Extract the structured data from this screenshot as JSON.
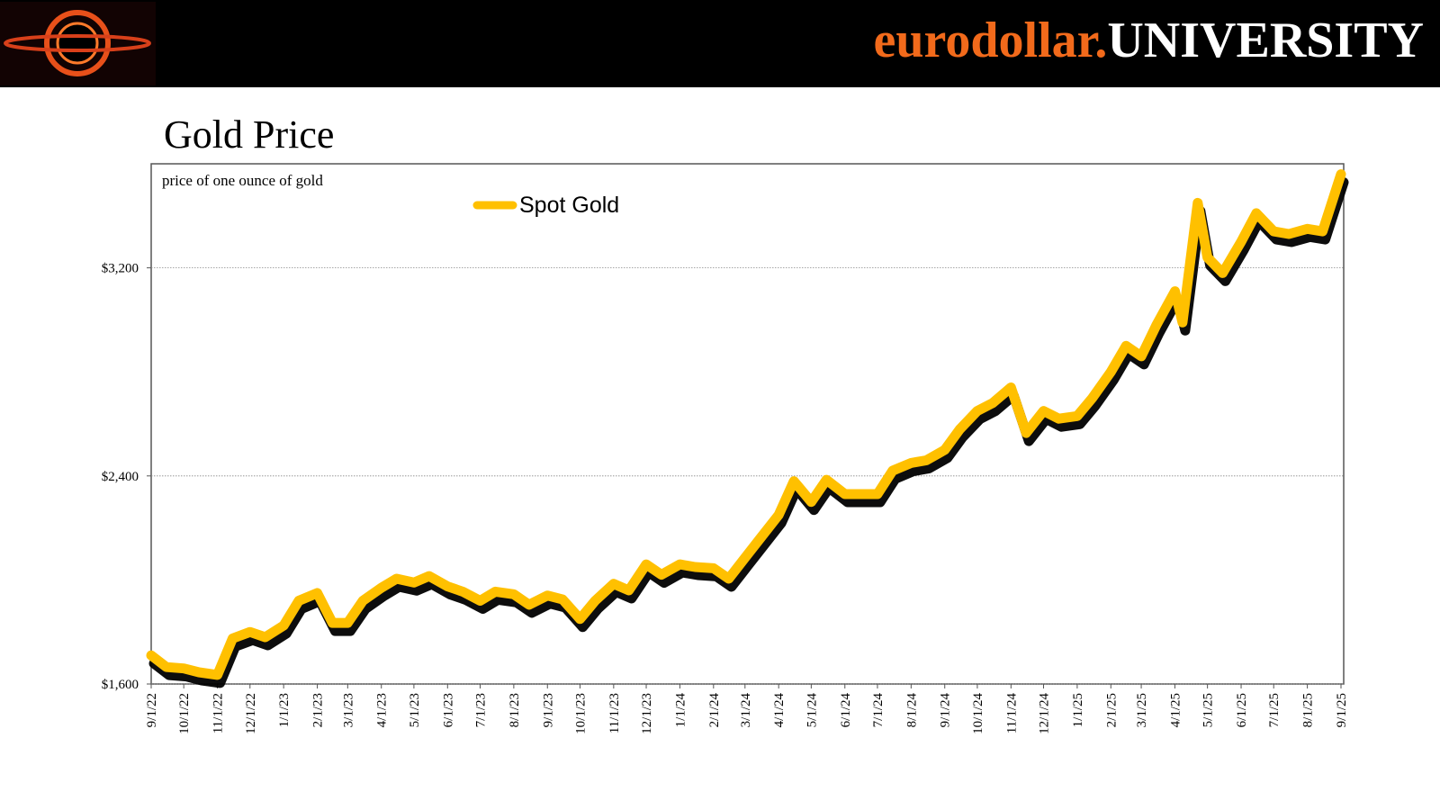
{
  "header": {
    "brand_part1": "eurodollar.",
    "brand_part2": "UNIVERSITY"
  },
  "chart_data": {
    "type": "line",
    "title": "Gold Price",
    "subtitle": "price of one ounce of gold",
    "x": [
      "9/1/22",
      "9/15/22",
      "10/1/22",
      "10/15/22",
      "11/1/22",
      "11/15/22",
      "12/1/22",
      "12/15/22",
      "1/1/23",
      "1/15/23",
      "2/1/23",
      "2/15/23",
      "3/1/23",
      "3/15/23",
      "4/1/23",
      "4/15/23",
      "5/1/23",
      "5/15/23",
      "6/1/23",
      "6/15/23",
      "7/1/23",
      "7/15/23",
      "8/1/23",
      "8/15/23",
      "9/1/23",
      "9/15/23",
      "10/1/23",
      "10/15/23",
      "11/1/23",
      "11/15/23",
      "12/1/23",
      "12/15/23",
      "1/1/24",
      "1/15/24",
      "2/1/24",
      "2/15/24",
      "3/1/24",
      "3/15/24",
      "4/1/24",
      "4/15/24",
      "5/1/24",
      "5/15/24",
      "6/1/24",
      "6/15/24",
      "7/1/24",
      "7/15/24",
      "8/1/24",
      "8/15/24",
      "9/1/24",
      "9/15/24",
      "10/1/24",
      "10/15/24",
      "11/1/24",
      "11/15/24",
      "12/1/24",
      "12/15/24",
      "1/1/25",
      "1/15/25",
      "2/1/25",
      "2/15/25",
      "3/1/25",
      "3/15/25",
      "4/1/25",
      "4/8/25",
      "4/22/25",
      "5/1/25",
      "5/15/25",
      "6/1/25",
      "6/15/25",
      "7/1/25",
      "7/15/25",
      "8/1/25",
      "8/15/25",
      "9/1/25"
    ],
    "series": [
      {
        "name": "Spot Gold",
        "color": "#ffc000",
        "values": [
          1710,
          1665,
          1660,
          1645,
          1635,
          1775,
          1800,
          1780,
          1825,
          1920,
          1950,
          1835,
          1835,
          1920,
          1970,
          2005,
          1990,
          2015,
          1975,
          1955,
          1920,
          1955,
          1945,
          1905,
          1940,
          1925,
          1850,
          1920,
          1985,
          1960,
          2060,
          2020,
          2060,
          2050,
          2045,
          2005,
          2085,
          2160,
          2250,
          2380,
          2300,
          2385,
          2330,
          2330,
          2330,
          2420,
          2450,
          2460,
          2500,
          2580,
          2650,
          2680,
          2740,
          2565,
          2650,
          2620,
          2630,
          2700,
          2800,
          2900,
          2860,
          2980,
          3110,
          2990,
          3450,
          3240,
          3180,
          3300,
          3410,
          3340,
          3330,
          3350,
          3340,
          3560
        ]
      }
    ],
    "xlim": [
      "9/1/22",
      "9/1/25"
    ],
    "xticks": [
      "9/1/22",
      "10/1/22",
      "11/1/22",
      "12/1/22",
      "1/1/23",
      "2/1/23",
      "3/1/23",
      "4/1/23",
      "5/1/23",
      "6/1/23",
      "7/1/23",
      "8/1/23",
      "9/1/23",
      "10/1/23",
      "11/1/23",
      "12/1/23",
      "1/1/24",
      "2/1/24",
      "3/1/24",
      "4/1/24",
      "5/1/24",
      "6/1/24",
      "7/1/24",
      "8/1/24",
      "9/1/24",
      "10/1/24",
      "11/1/24",
      "12/1/24",
      "1/1/25",
      "2/1/25",
      "3/1/25",
      "4/1/25",
      "5/1/25",
      "6/1/25",
      "7/1/25",
      "8/1/25",
      "9/1/25"
    ],
    "ylim": [
      1600,
      3600
    ],
    "yticks": [
      {
        "value": 1600,
        "label": "$1,600"
      },
      {
        "value": 2400,
        "label": "$2,400"
      },
      {
        "value": 3200,
        "label": "$3,200"
      }
    ],
    "grid": true
  }
}
